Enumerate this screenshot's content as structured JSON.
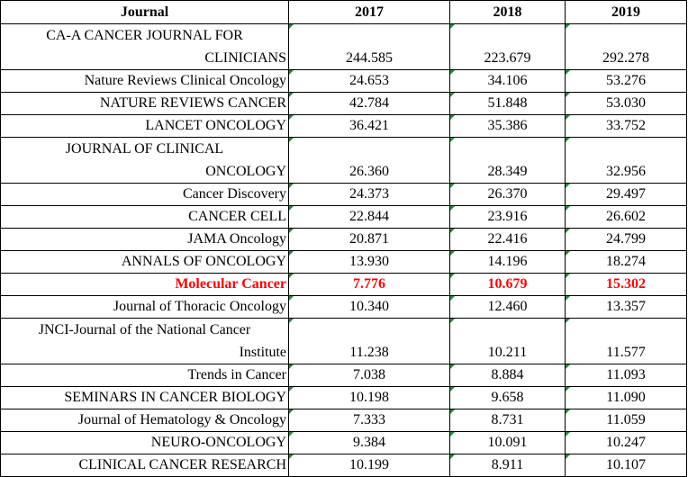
{
  "table": {
    "headers": [
      "Journal",
      "2017",
      "2018",
      "2019"
    ],
    "rows": [
      {
        "journal_l1": "CA-A CANCER JOURNAL FOR",
        "journal_l2": "CLINICIANS",
        "v2017": "244.585",
        "v2018": "223.679",
        "v2019": "292.278"
      },
      {
        "journal": "Nature Reviews Clinical Oncology",
        "v2017": "24.653",
        "v2018": "34.106",
        "v2019": "53.276"
      },
      {
        "journal": "NATURE REVIEWS CANCER",
        "v2017": "42.784",
        "v2018": "51.848",
        "v2019": "53.030"
      },
      {
        "journal": "LANCET ONCOLOGY",
        "v2017": "36.421",
        "v2018": "35.386",
        "v2019": "33.752"
      },
      {
        "journal_l1": "JOURNAL OF CLINICAL",
        "journal_l2": "ONCOLOGY",
        "v2017": "26.360",
        "v2018": "28.349",
        "v2019": "32.956"
      },
      {
        "journal": "Cancer Discovery",
        "v2017": "24.373",
        "v2018": "26.370",
        "v2019": "29.497"
      },
      {
        "journal": "CANCER CELL",
        "v2017": "22.844",
        "v2018": "23.916",
        "v2019": "26.602"
      },
      {
        "journal": "JAMA Oncology",
        "v2017": "20.871",
        "v2018": "22.416",
        "v2019": "24.799"
      },
      {
        "journal": "ANNALS OF ONCOLOGY",
        "v2017": "13.930",
        "v2018": "14.196",
        "v2019": "18.274"
      },
      {
        "journal": "Molecular Cancer",
        "v2017": "7.776",
        "v2018": "10.679",
        "v2019": "15.302"
      },
      {
        "journal": "Journal of Thoracic Oncology",
        "v2017": "10.340",
        "v2018": "12.460",
        "v2019": "13.357"
      },
      {
        "journal_l1": "JNCI-Journal of the National Cancer",
        "journal_l2": "Institute",
        "v2017": "11.238",
        "v2018": "10.211",
        "v2019": "11.577"
      },
      {
        "journal": "Trends in Cancer",
        "v2017": "7.038",
        "v2018": "8.884",
        "v2019": "11.093"
      },
      {
        "journal": "SEMINARS IN CANCER BIOLOGY",
        "v2017": "10.198",
        "v2018": "9.658",
        "v2019": "11.090"
      },
      {
        "journal": "Journal of Hematology & Oncology",
        "v2017": "7.333",
        "v2018": "8.731",
        "v2019": "11.059"
      },
      {
        "journal": "NEURO-ONCOLOGY",
        "v2017": "9.384",
        "v2018": "10.091",
        "v2019": "10.247"
      },
      {
        "journal": "CLINICAL CANCER RESEARCH",
        "v2017": "10.199",
        "v2018": "8.911",
        "v2019": "10.107"
      }
    ]
  },
  "colors": {
    "highlight": "#ff0000",
    "marker": "#1e8c3a"
  }
}
